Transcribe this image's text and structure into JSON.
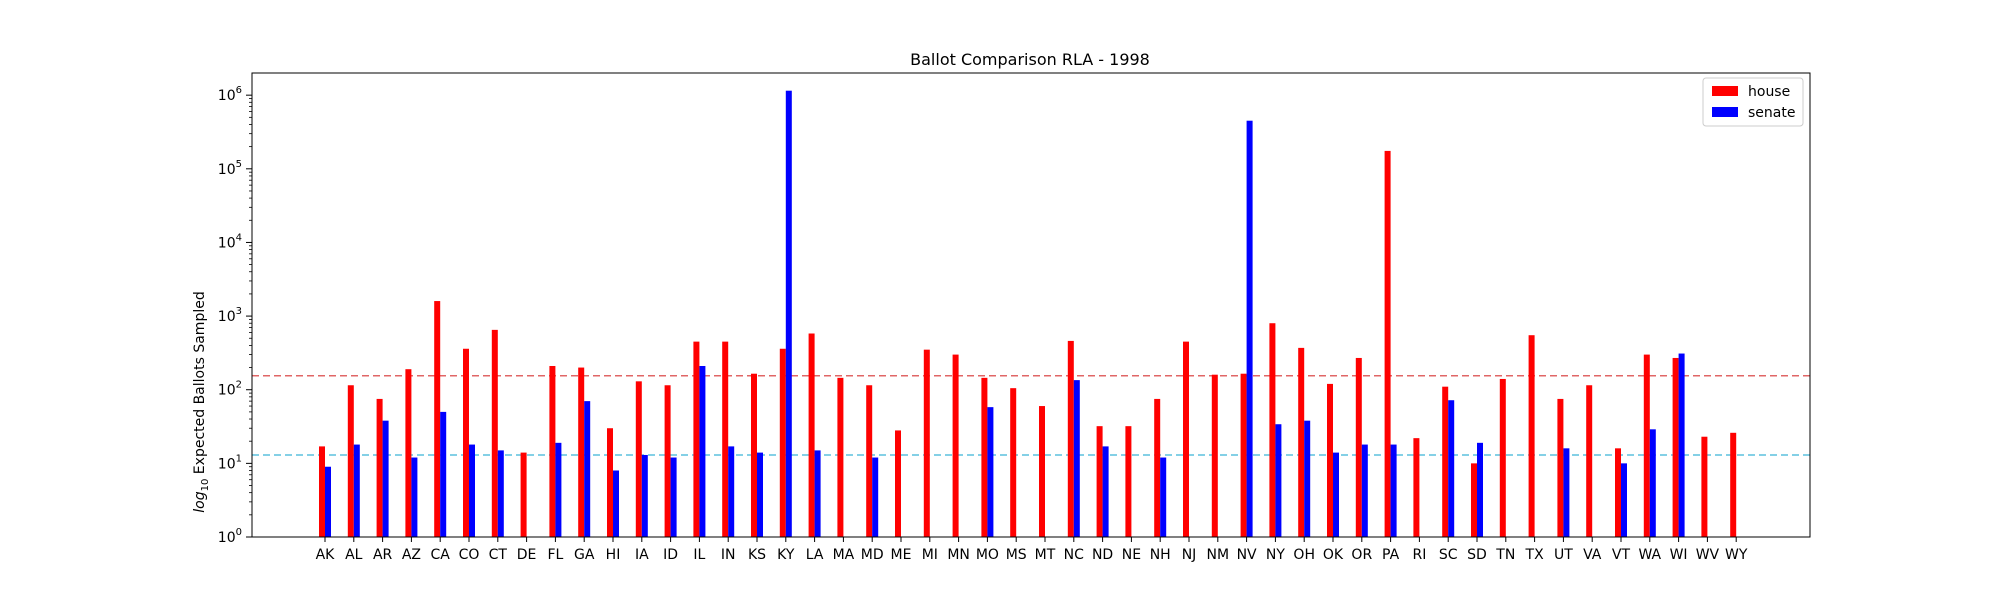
{
  "chart_data": {
    "type": "bar",
    "title": "Ballot Comparison RLA - 1998",
    "xlabel": "",
    "ylabel_prefix": "log",
    "ylabel_sub": "10",
    "ylabel_rest": " Expected Ballots Sampled",
    "yscale": "log",
    "ylim": [
      1,
      2000000
    ],
    "ytick_values": [
      1,
      10,
      100,
      1000,
      10000,
      100000,
      1000000
    ],
    "ytick_labels": [
      {
        "base": "10",
        "exp": "0"
      },
      {
        "base": "10",
        "exp": "1"
      },
      {
        "base": "10",
        "exp": "2"
      },
      {
        "base": "10",
        "exp": "3"
      },
      {
        "base": "10",
        "exp": "4"
      },
      {
        "base": "10",
        "exp": "5"
      },
      {
        "base": "10",
        "exp": "6"
      }
    ],
    "legend_position": "top-right",
    "categories": [
      "AK",
      "AL",
      "AR",
      "AZ",
      "CA",
      "CO",
      "CT",
      "DE",
      "FL",
      "GA",
      "HI",
      "IA",
      "ID",
      "IL",
      "IN",
      "KS",
      "KY",
      "LA",
      "MA",
      "MD",
      "ME",
      "MI",
      "MN",
      "MO",
      "MS",
      "MT",
      "NC",
      "ND",
      "NE",
      "NH",
      "NJ",
      "NM",
      "NV",
      "NY",
      "OH",
      "OK",
      "OR",
      "PA",
      "RI",
      "SC",
      "SD",
      "TN",
      "TX",
      "UT",
      "VA",
      "VT",
      "WA",
      "WI",
      "WV",
      "WY"
    ],
    "series": [
      {
        "name": "house",
        "color": "#ff0000",
        "values": [
          17,
          115,
          75,
          190,
          1600,
          360,
          650,
          14,
          210,
          200,
          30,
          130,
          115,
          450,
          450,
          165,
          360,
          580,
          145,
          115,
          28,
          350,
          300,
          145,
          105,
          60,
          460,
          32,
          32,
          75,
          450,
          160,
          165,
          800,
          370,
          120,
          270,
          175000,
          22,
          110,
          10,
          140,
          550,
          75,
          115,
          16,
          300,
          270,
          23,
          26
        ]
      },
      {
        "name": "senate",
        "color": "#0000ff",
        "values": [
          9,
          18,
          38,
          12,
          50,
          18,
          15,
          null,
          19,
          70,
          8,
          13,
          12,
          210,
          17,
          14,
          1150000,
          15,
          null,
          12,
          null,
          null,
          null,
          58,
          null,
          null,
          135,
          17,
          null,
          12,
          null,
          null,
          450000,
          34,
          38,
          14,
          18,
          18,
          null,
          72,
          19,
          null,
          null,
          16,
          null,
          10,
          29,
          310,
          null,
          null
        ]
      }
    ],
    "hlines": [
      {
        "y": 155,
        "color": "#e06666",
        "style": "dashed"
      },
      {
        "y": 13,
        "color": "#5bc0de",
        "style": "dashed"
      }
    ]
  }
}
